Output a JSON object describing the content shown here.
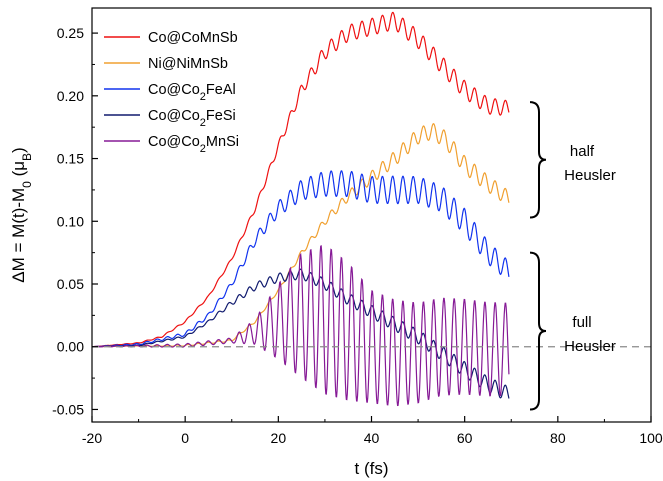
{
  "chart_data": {
    "type": "line",
    "xlabel": "t (fs)",
    "ylabel": {
      "main": "ΔM = M(t)-M",
      "sub0": "0",
      "mid": " (μ",
      "subB": "B",
      "end": ")"
    },
    "xlim": [
      -20,
      100
    ],
    "ylim": [
      -0.06,
      0.27
    ],
    "xticks": [
      "-20",
      "0",
      "20",
      "40",
      "60",
      "80",
      "100"
    ],
    "yticks": [
      "-0.05",
      "0.00",
      "0.05",
      "0.10",
      "0.15",
      "0.20",
      "0.25"
    ],
    "grid": false,
    "legend_position": "top-left",
    "zero_line": {
      "y": 0,
      "style": "dashed",
      "color": "#8a8a8a"
    },
    "series": [
      {
        "name": "Co@CoMnSb",
        "legend": {
          "pre": "Co@CoMnSb",
          "sub": "",
          "post": ""
        },
        "color": "#ee1111",
        "envelope": [
          [
            -20,
            0
          ],
          [
            -10,
            0.003
          ],
          [
            -5,
            0.008
          ],
          [
            0,
            0.02
          ],
          [
            5,
            0.04
          ],
          [
            10,
            0.07
          ],
          [
            15,
            0.11
          ],
          [
            20,
            0.16
          ],
          [
            25,
            0.205
          ],
          [
            30,
            0.235
          ],
          [
            35,
            0.25
          ],
          [
            40,
            0.255
          ],
          [
            45,
            0.26
          ],
          [
            50,
            0.245
          ],
          [
            55,
            0.225
          ],
          [
            60,
            0.205
          ],
          [
            65,
            0.192
          ],
          [
            69.5,
            0.19
          ]
        ],
        "oscillation": [
          [
            -20,
            0
          ],
          [
            10,
            0.001
          ],
          [
            20,
            0.003
          ],
          [
            30,
            0.006
          ],
          [
            45,
            0.007
          ],
          [
            60,
            0.007
          ],
          [
            69.5,
            0.006
          ]
        ],
        "period_fs": 2.2
      },
      {
        "name": "Ni@NiMnSb",
        "legend": {
          "pre": "Ni@NiMnSb",
          "sub": "",
          "post": ""
        },
        "color": "#f0a030",
        "envelope": [
          [
            -20,
            0
          ],
          [
            0,
            0.001
          ],
          [
            10,
            0.005
          ],
          [
            15,
            0.02
          ],
          [
            20,
            0.045
          ],
          [
            25,
            0.075
          ],
          [
            30,
            0.1
          ],
          [
            35,
            0.12
          ],
          [
            40,
            0.135
          ],
          [
            45,
            0.15
          ],
          [
            50,
            0.168
          ],
          [
            53,
            0.172
          ],
          [
            56,
            0.165
          ],
          [
            60,
            0.145
          ],
          [
            65,
            0.13
          ],
          [
            69.5,
            0.118
          ]
        ],
        "oscillation": [
          [
            -20,
            0
          ],
          [
            20,
            0.001
          ],
          [
            30,
            0.003
          ],
          [
            45,
            0.006
          ],
          [
            60,
            0.007
          ],
          [
            69.5,
            0.006
          ]
        ],
        "period_fs": 2.2
      },
      {
        "name": "Co@Co2FeAl",
        "legend": {
          "pre": "Co@Co",
          "sub": "2",
          "post": "FeAl"
        },
        "color": "#1133ee",
        "envelope": [
          [
            -20,
            0
          ],
          [
            -10,
            0.002
          ],
          [
            0,
            0.01
          ],
          [
            5,
            0.025
          ],
          [
            10,
            0.05
          ],
          [
            15,
            0.085
          ],
          [
            20,
            0.11
          ],
          [
            25,
            0.125
          ],
          [
            30,
            0.13
          ],
          [
            35,
            0.13
          ],
          [
            40,
            0.125
          ],
          [
            45,
            0.125
          ],
          [
            50,
            0.125
          ],
          [
            55,
            0.118
          ],
          [
            60,
            0.1
          ],
          [
            65,
            0.075
          ],
          [
            69.5,
            0.06
          ]
        ],
        "oscillation": [
          [
            -20,
            0
          ],
          [
            10,
            0.002
          ],
          [
            20,
            0.006
          ],
          [
            30,
            0.01
          ],
          [
            45,
            0.011
          ],
          [
            60,
            0.01
          ],
          [
            69.5,
            0.008
          ]
        ],
        "period_fs": 2.2
      },
      {
        "name": "Co@Co2FeSi",
        "legend": {
          "pre": "Co@Co",
          "sub": "2",
          "post": "FeSi"
        },
        "color": "#101a6e",
        "envelope": [
          [
            -20,
            0
          ],
          [
            -10,
            0.001
          ],
          [
            0,
            0.008
          ],
          [
            5,
            0.02
          ],
          [
            10,
            0.035
          ],
          [
            15,
            0.048
          ],
          [
            20,
            0.055
          ],
          [
            25,
            0.058
          ],
          [
            30,
            0.05
          ],
          [
            35,
            0.038
          ],
          [
            40,
            0.028
          ],
          [
            45,
            0.018
          ],
          [
            50,
            0.008
          ],
          [
            55,
            -0.005
          ],
          [
            60,
            -0.018
          ],
          [
            65,
            -0.03
          ],
          [
            69.5,
            -0.038
          ]
        ],
        "oscillation": [
          [
            -20,
            0
          ],
          [
            5,
            0.001
          ],
          [
            15,
            0.003
          ],
          [
            25,
            0.004
          ],
          [
            40,
            0.005
          ],
          [
            60,
            0.006
          ],
          [
            69.5,
            0.006
          ]
        ],
        "period_fs": 2.2
      },
      {
        "name": "Co@Co2MnSi",
        "legend": {
          "pre": "Co@Co",
          "sub": "2",
          "post": "MnSi"
        },
        "color": "#861a96",
        "envelope": [
          [
            -20,
            0
          ],
          [
            0,
            0.001
          ],
          [
            10,
            0.005
          ],
          [
            15,
            0.012
          ],
          [
            20,
            0.02
          ],
          [
            25,
            0.025
          ],
          [
            30,
            0.022
          ],
          [
            35,
            0.012
          ],
          [
            40,
            0.0
          ],
          [
            45,
            -0.005
          ],
          [
            50,
            -0.005
          ],
          [
            55,
            0.0
          ],
          [
            60,
            0.0
          ],
          [
            65,
            -0.002
          ],
          [
            69.5,
            -0.002
          ]
        ],
        "oscillation": [
          [
            -20,
            0
          ],
          [
            10,
            0.002
          ],
          [
            15,
            0.01
          ],
          [
            20,
            0.03
          ],
          [
            25,
            0.05
          ],
          [
            30,
            0.06
          ],
          [
            35,
            0.055
          ],
          [
            40,
            0.045
          ],
          [
            50,
            0.04
          ],
          [
            60,
            0.038
          ],
          [
            69.5,
            0.037
          ]
        ],
        "period_fs": 2.2
      }
    ],
    "annotations": [
      {
        "type": "brace",
        "from": 0.103,
        "to": 0.195,
        "lines": [
          "half",
          "Heusler"
        ]
      },
      {
        "type": "brace",
        "from": -0.05,
        "to": 0.075,
        "lines": [
          "full",
          "Heusler"
        ]
      }
    ]
  }
}
